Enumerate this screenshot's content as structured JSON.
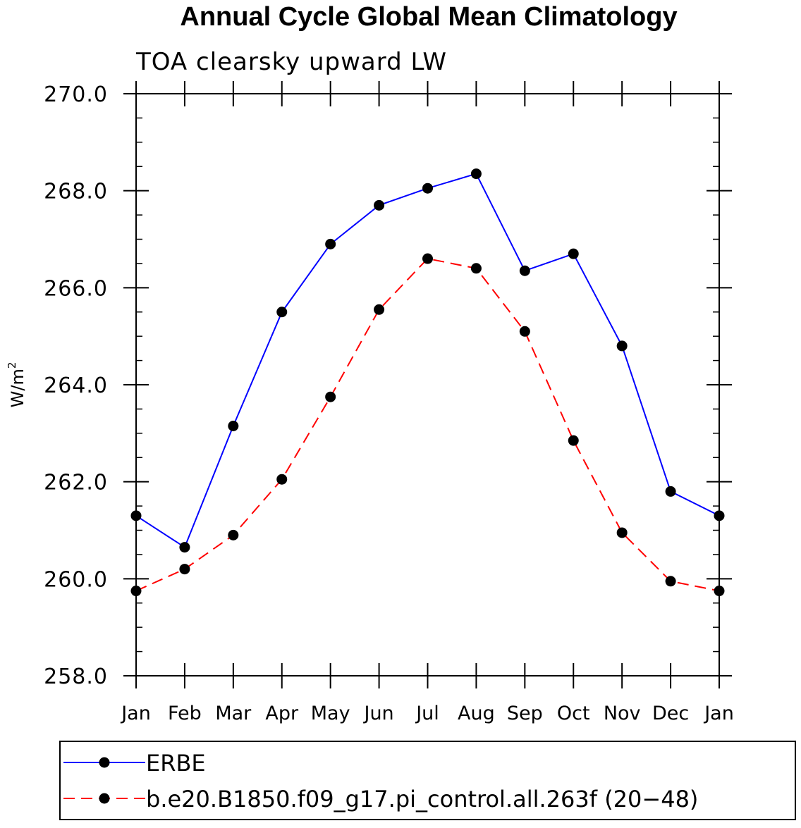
{
  "chart_data": {
    "type": "line",
    "title": "Annual Cycle Global Mean Climatology",
    "subtitle": "TOA clearsky upward LW",
    "ylabel": "W/m",
    "ylabel_superscript": "2",
    "xlabel": "",
    "categories": [
      "Jan",
      "Feb",
      "Mar",
      "Apr",
      "May",
      "Jun",
      "Jul",
      "Aug",
      "Sep",
      "Oct",
      "Nov",
      "Dec",
      "Jan"
    ],
    "ylim": [
      258.0,
      270.0
    ],
    "yticks": [
      "258.0",
      "260.0",
      "262.0",
      "264.0",
      "266.0",
      "268.0",
      "270.0"
    ],
    "grid": false,
    "legend_position": "bottom",
    "series": [
      {
        "name": "ERBE",
        "color": "#0000ff",
        "line_style": "solid",
        "marker": "filled-circle",
        "values": [
          261.3,
          260.65,
          263.15,
          265.5,
          266.9,
          267.7,
          268.05,
          268.35,
          266.35,
          266.7,
          264.8,
          261.8,
          261.3
        ]
      },
      {
        "name": "b.e20.B1850.f09_g17.pi_control.all.263f (20−48)",
        "color": "#ff0000",
        "line_style": "dashed",
        "marker": "filled-circle",
        "values": [
          259.75,
          260.2,
          260.9,
          262.05,
          263.75,
          265.55,
          266.6,
          266.4,
          265.1,
          262.85,
          260.95,
          259.95,
          259.75
        ]
      }
    ]
  }
}
